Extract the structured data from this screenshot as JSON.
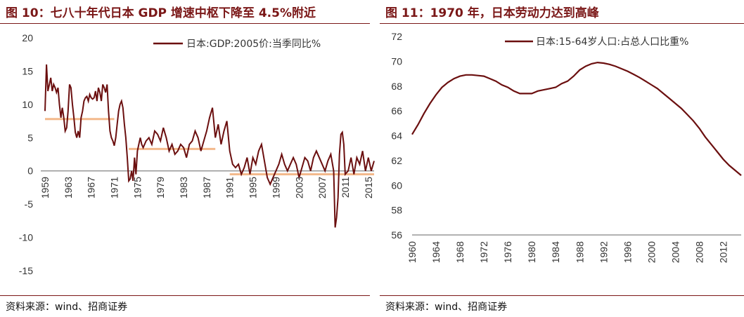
{
  "left": {
    "title": "图 10：七八十年代日本 GDP 增速中枢下降至 4.5%附近",
    "source": "资料来源：wind、招商证券"
  },
  "right": {
    "title": "图 11：1970 年，日本劳动力达到高峰",
    "source": "资料来源：wind、招商证券"
  },
  "colors": {
    "accent": "#7a1717",
    "series": "#6b0f0f",
    "average": "#f3b98c"
  },
  "chart_data": [
    {
      "type": "line",
      "title": "",
      "series": [
        {
          "name": "日本:GDP:2005价:当季同比%",
          "x": [
            1959.0,
            1959.25,
            1959.5,
            1959.75,
            1960.0,
            1960.25,
            1960.5,
            1960.75,
            1961.0,
            1961.25,
            1961.5,
            1961.75,
            1962.0,
            1962.25,
            1962.5,
            1962.75,
            1963.0,
            1963.25,
            1963.5,
            1963.75,
            1964.0,
            1964.25,
            1964.5,
            1964.75,
            1965.0,
            1965.25,
            1965.5,
            1965.75,
            1966.0,
            1966.25,
            1966.5,
            1966.75,
            1967.0,
            1967.25,
            1967.5,
            1967.75,
            1968.0,
            1968.25,
            1968.5,
            1968.75,
            1969.0,
            1969.25,
            1969.5,
            1969.75,
            1970.0,
            1970.25,
            1970.5,
            1970.75,
            1971.0,
            1971.25,
            1971.5,
            1971.75,
            1972.0,
            1972.25,
            1972.5,
            1972.75,
            1973.0,
            1973.25,
            1973.5,
            1973.75,
            1974.0,
            1974.25,
            1974.5,
            1974.75,
            1975.0,
            1975.25,
            1975.5,
            1975.75,
            1976.0,
            1976.5,
            1977.0,
            1977.5,
            1978.0,
            1978.5,
            1979.0,
            1979.5,
            1980.0,
            1980.5,
            1981.0,
            1981.5,
            1982.0,
            1982.5,
            1983.0,
            1983.5,
            1984.0,
            1984.5,
            1985.0,
            1985.5,
            1986.0,
            1986.5,
            1987.0,
            1987.5,
            1988.0,
            1988.5,
            1989.0,
            1989.5,
            1990.0,
            1990.5,
            1991.0,
            1991.5,
            1992.0,
            1992.5,
            1993.0,
            1993.5,
            1994.0,
            1994.5,
            1995.0,
            1995.5,
            1996.0,
            1996.5,
            1997.0,
            1997.5,
            1998.0,
            1998.5,
            1999.0,
            1999.5,
            2000.0,
            2000.5,
            2001.0,
            2001.5,
            2002.0,
            2002.5,
            2003.0,
            2003.5,
            2004.0,
            2004.5,
            2005.0,
            2005.5,
            2006.0,
            2006.5,
            2007.0,
            2007.5,
            2008.0,
            2008.5,
            2009.0,
            2009.25,
            2009.5,
            2009.75,
            2010.0,
            2010.25,
            2010.5,
            2010.75,
            2011.0,
            2011.5,
            2012.0,
            2012.5,
            2013.0,
            2013.5,
            2014.0,
            2014.5,
            2015.0,
            2015.5,
            2016.0
          ],
          "y": [
            9,
            16,
            12,
            13,
            14,
            12,
            13,
            12.5,
            11.8,
            12.5,
            10,
            8,
            9.5,
            8,
            6,
            6.5,
            9,
            13,
            12.5,
            10,
            8,
            5.8,
            5,
            6,
            5,
            8,
            9,
            10.5,
            11,
            11.2,
            10.5,
            11.5,
            11,
            10.8,
            11,
            12,
            10.5,
            12.5,
            11.8,
            10.5,
            13,
            12.5,
            11.8,
            13,
            9,
            6,
            5,
            4.5,
            3.8,
            5,
            7,
            9,
            10,
            10.5,
            9.5,
            7,
            5,
            2,
            -1.5,
            -1.2,
            0,
            -1.5,
            2,
            -0.5,
            3,
            4,
            5,
            4,
            3.5,
            4.5,
            5,
            4,
            6,
            5.5,
            4.5,
            6.5,
            5,
            3,
            4,
            2.5,
            3,
            4,
            3.5,
            2,
            4,
            4.5,
            6,
            5,
            3,
            4.5,
            6,
            8,
            9.5,
            5,
            7,
            4,
            6,
            7.5,
            3,
            1,
            0.5,
            1,
            -0.5,
            0.5,
            2,
            -0.5,
            2,
            1,
            3,
            4,
            1.5,
            -1,
            -2,
            -1,
            0,
            1,
            2.5,
            1,
            0,
            1,
            2,
            1,
            -1,
            0.5,
            2,
            1.5,
            0,
            2,
            3,
            2,
            1,
            0,
            1.5,
            2.5,
            0,
            -8.5,
            -7,
            -4,
            2.5,
            5.5,
            5.8,
            4,
            -0.5,
            0,
            2,
            -0.5,
            2,
            1,
            3,
            0,
            2,
            0,
            1.5
          ],
          "color": "#6b0f0f"
        }
      ],
      "averages": [
        {
          "x": [
            1959,
            1971
          ],
          "y": 7.8
        },
        {
          "x": [
            1973.5,
            1988.5
          ],
          "y": 3.3
        },
        {
          "x": [
            1991,
            2016
          ],
          "y": -0.5
        }
      ],
      "x_tick_labels": [
        "1959",
        "1963",
        "1967",
        "1971",
        "1975",
        "1979",
        "1983",
        "1987",
        "1991",
        "1995",
        "1999",
        "2003",
        "2007",
        "2011",
        "2015"
      ],
      "y_ticks": [
        20,
        15,
        10,
        5,
        0,
        -5,
        -10,
        -15
      ],
      "xlim": [
        1959,
        2016
      ],
      "ylim": [
        -15,
        20
      ],
      "legend": "top-right",
      "grid": false
    },
    {
      "type": "line",
      "title": "",
      "series": [
        {
          "name": "日本:15-64岁人口:占总人口比重%",
          "x": [
            1960,
            1961,
            1962,
            1963,
            1964,
            1965,
            1966,
            1967,
            1968,
            1969,
            1970,
            1971,
            1972,
            1973,
            1974,
            1975,
            1976,
            1977,
            1978,
            1979,
            1980,
            1981,
            1982,
            1983,
            1984,
            1985,
            1986,
            1987,
            1988,
            1989,
            1990,
            1991,
            1992,
            1993,
            1994,
            1995,
            1996,
            1997,
            1998,
            1999,
            2000,
            2001,
            2002,
            2003,
            2004,
            2005,
            2006,
            2007,
            2008,
            2009,
            2010,
            2011,
            2012,
            2013,
            2014,
            2015
          ],
          "y": [
            64.1,
            64.9,
            65.8,
            66.6,
            67.3,
            67.9,
            68.3,
            68.6,
            68.8,
            68.9,
            68.9,
            68.85,
            68.8,
            68.6,
            68.4,
            68.1,
            67.9,
            67.6,
            67.4,
            67.4,
            67.4,
            67.6,
            67.7,
            67.8,
            67.9,
            68.2,
            68.4,
            68.8,
            69.3,
            69.6,
            69.8,
            69.9,
            69.85,
            69.75,
            69.6,
            69.4,
            69.2,
            68.95,
            68.7,
            68.4,
            68.1,
            67.8,
            67.4,
            67.0,
            66.6,
            66.2,
            65.7,
            65.2,
            64.6,
            63.9,
            63.3,
            62.7,
            62.1,
            61.6,
            61.2,
            60.8
          ],
          "color": "#6b0f0f"
        }
      ],
      "x_tick_labels": [
        "1960",
        "1964",
        "1968",
        "1972",
        "1976",
        "1980",
        "1984",
        "1988",
        "1992",
        "1996",
        "2000",
        "2004",
        "2008",
        "2012"
      ],
      "y_ticks": [
        72,
        70,
        68,
        66,
        64,
        62,
        60,
        58,
        56
      ],
      "xlim": [
        1960,
        2015
      ],
      "ylim": [
        56,
        72
      ],
      "legend": "top-right",
      "grid": false
    }
  ]
}
